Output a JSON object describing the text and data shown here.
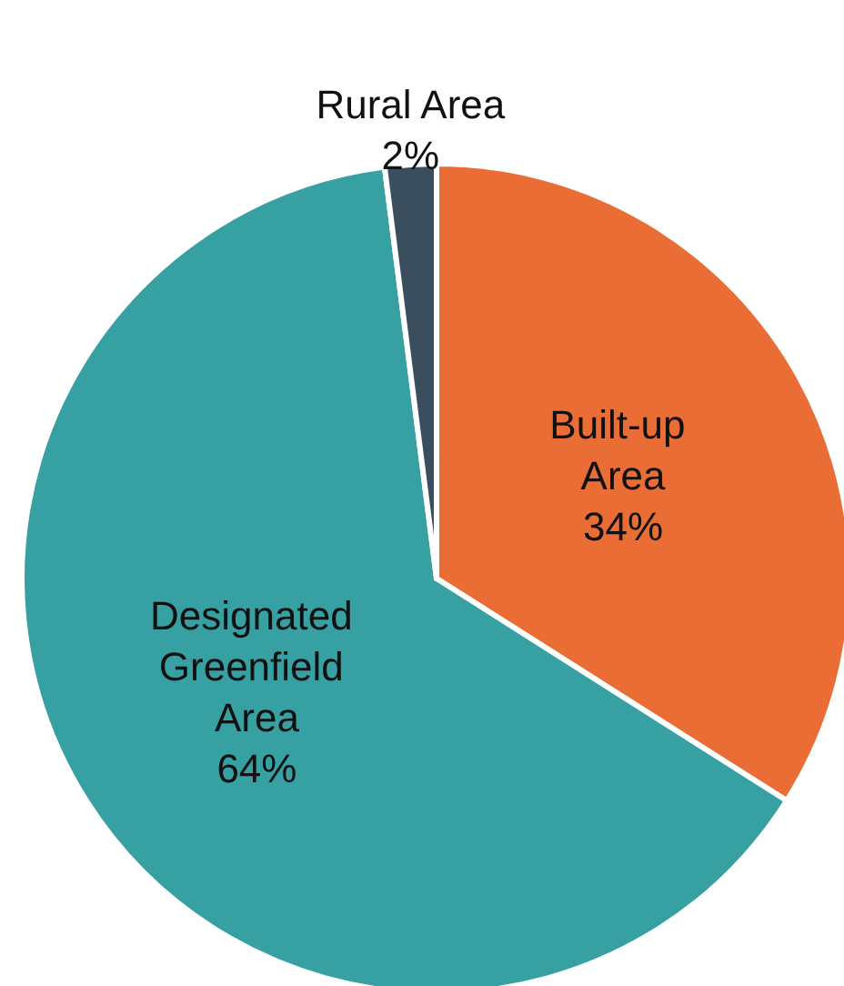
{
  "chart_data": {
    "type": "pie",
    "categories": [
      "Built-up Area",
      "Designated Greenfield Area",
      "Rural Area"
    ],
    "values": [
      34,
      64,
      2
    ],
    "colors": [
      "#e96d35",
      "#36a0a3",
      "#3a4e5e"
    ],
    "value_labels": [
      "34%",
      "64%",
      "2%"
    ],
    "legend": false
  }
}
